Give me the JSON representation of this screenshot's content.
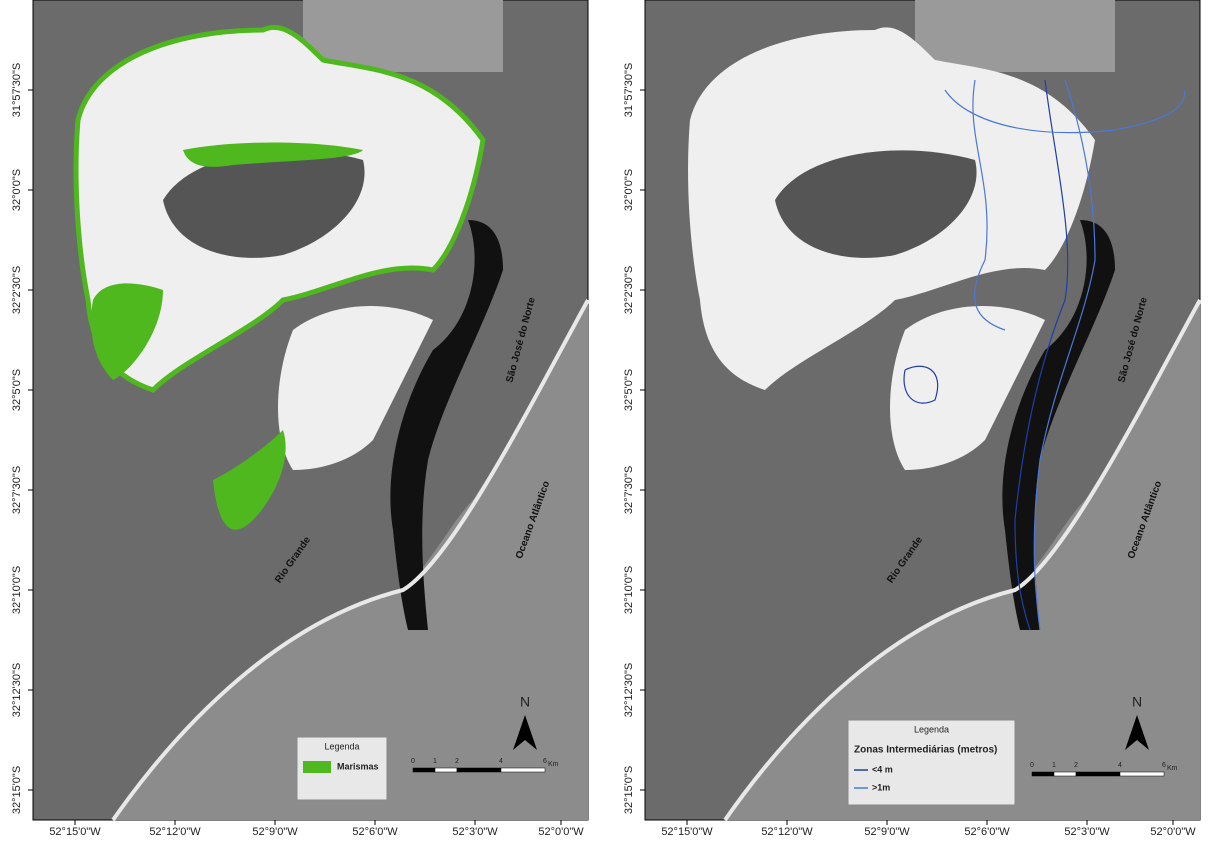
{
  "panels": [
    {
      "y_labels": [
        "31°57'30\"S",
        "32°0'0\"S",
        "32°2'30\"S",
        "32°5'0\"S",
        "32°7'30\"S",
        "32°10'0\"S",
        "32°12'30\"S",
        "32°15'0\"S"
      ],
      "x_labels": [
        "52°15'0\"W",
        "52°12'0\"W",
        "52°9'0\"W",
        "52°6'0\"W",
        "52°3'0\"W",
        "52°0'0\"W"
      ],
      "places": [
        "São José do Norte",
        "Oceano Atlântico",
        "Rio Grande"
      ],
      "north": "N",
      "legend": {
        "title": "Legenda",
        "items": [
          "Marismas"
        ]
      },
      "scale": [
        "0",
        "1",
        "2",
        "4",
        "6"
      ],
      "scale_unit": "Km"
    },
    {
      "y_labels": [
        "31°57'30\"S",
        "32°0'0\"S",
        "32°2'30\"S",
        "32°5'0\"S",
        "32°7'30\"S",
        "32°10'0\"S",
        "32°12'30\"S",
        "32°15'0\"S"
      ],
      "x_labels": [
        "52°15'0\"W",
        "52°12'0\"W",
        "52°9'0\"W",
        "52°6'0\"W",
        "52°3'0\"W",
        "52°0'0\"W"
      ],
      "places": [
        "São José do Norte",
        "Oceano Atlântico",
        "Rio Grande"
      ],
      "north": "N",
      "legend": {
        "title": "Legenda",
        "subtitle": "Zonas Intermediárias (metros)",
        "items": [
          "<4 m",
          ">1m"
        ]
      },
      "scale": [
        "0",
        "1",
        "2",
        "4",
        "6"
      ],
      "scale_unit": "Km"
    }
  ]
}
